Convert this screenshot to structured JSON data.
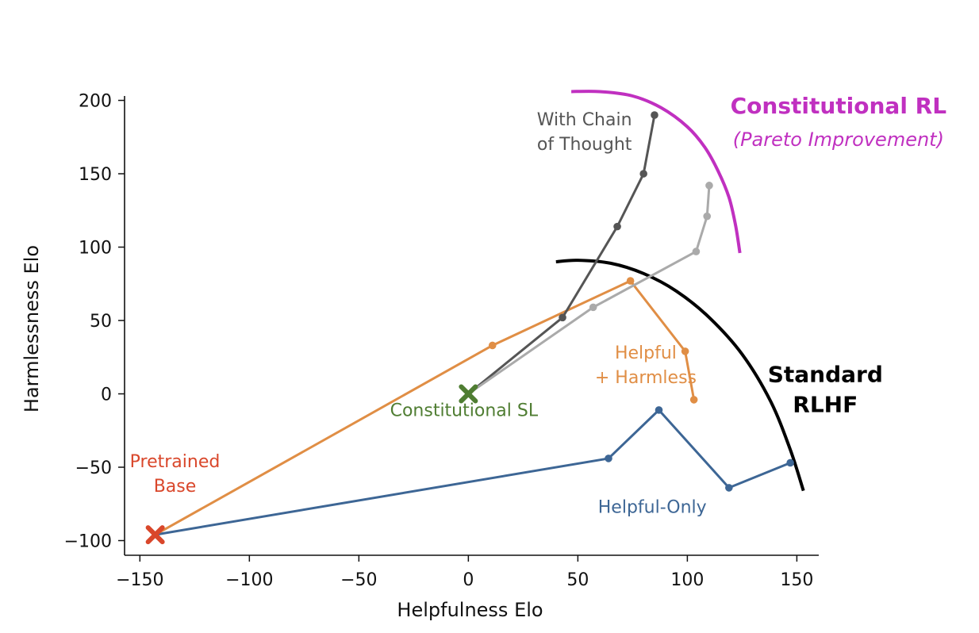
{
  "chart_data": {
    "type": "line",
    "xlabel": "Helpfulness Elo",
    "ylabel": "Harmlessness Elo",
    "xlim": [
      -157,
      160
    ],
    "ylim": [
      -110,
      203
    ],
    "xticks": [
      -150,
      -100,
      -50,
      0,
      50,
      100,
      150
    ],
    "yticks": [
      -100,
      -50,
      0,
      50,
      100,
      150,
      200
    ],
    "xtick_labels": [
      "−150",
      "−100",
      "−50",
      "0",
      "50",
      "100",
      "150"
    ],
    "ytick_labels": [
      "−100",
      "−50",
      "0",
      "50",
      "100",
      "150",
      "200"
    ],
    "grid": false,
    "series": [
      {
        "name": "Helpful-Only",
        "color": "#3d6695",
        "points": [
          [
            -143,
            -96
          ],
          [
            64,
            -44
          ],
          [
            87,
            -11
          ],
          [
            119,
            -64
          ],
          [
            147,
            -47
          ]
        ]
      },
      {
        "name": "Helpful + Harmless",
        "color": "#e08e45",
        "points": [
          [
            -143,
            -96
          ],
          [
            11,
            33
          ],
          [
            74,
            77
          ],
          [
            99,
            29
          ],
          [
            103,
            -4
          ]
        ]
      },
      {
        "name": "With Chain of Thought",
        "color": "#555555",
        "points": [
          [
            0,
            0
          ],
          [
            43,
            52
          ],
          [
            68,
            114
          ],
          [
            80,
            150
          ],
          [
            85,
            190
          ]
        ]
      },
      {
        "name": "",
        "color": "#aaaaaa",
        "points": [
          [
            0,
            0
          ],
          [
            57,
            59
          ],
          [
            104,
            97
          ],
          [
            109,
            121
          ],
          [
            110,
            142
          ]
        ]
      }
    ],
    "markers": [
      {
        "name": "Pretrained Base",
        "x": -143,
        "y": -96,
        "color": "#d9472b",
        "shape": "x"
      },
      {
        "name": "Constitutional SL",
        "x": 0,
        "y": 0,
        "color": "#4f7d32",
        "shape": "x"
      }
    ],
    "frontiers": [
      {
        "name": "Standard RLHF",
        "color": "#000000",
        "points": [
          [
            40,
            90
          ],
          [
            50,
            91
          ],
          [
            65,
            89
          ],
          [
            80,
            82
          ],
          [
            95,
            70
          ],
          [
            110,
            52
          ],
          [
            125,
            27
          ],
          [
            138,
            -5
          ],
          [
            147,
            -38
          ],
          [
            153,
            -66
          ]
        ]
      },
      {
        "name": "Constitutional RL (Pareto Improvement)",
        "color": "#c030c0",
        "points": [
          [
            47,
            206
          ],
          [
            60,
            206
          ],
          [
            75,
            203
          ],
          [
            88,
            195
          ],
          [
            100,
            182
          ],
          [
            108,
            168
          ],
          [
            114,
            152
          ],
          [
            119,
            134
          ],
          [
            122,
            115
          ],
          [
            124,
            96
          ]
        ]
      }
    ],
    "annotations": [
      {
        "id": "chain",
        "lines": [
          "With Chain",
          "of Thought"
        ],
        "color": "#555555",
        "style": "normal",
        "x": 53,
        "y": 183,
        "dy": 31
      },
      {
        "id": "helpful-harmless",
        "lines": [
          "Helpful",
          "+ Harmless"
        ],
        "color": "#e08e45",
        "style": "normal",
        "x": 81,
        "y": 24,
        "dy": 31
      },
      {
        "id": "helpful-only",
        "lines": [
          "Helpful-Only"
        ],
        "color": "#3d6695",
        "style": "normal",
        "x": 84,
        "y": -81,
        "dy": 31
      },
      {
        "id": "constitutional-sl",
        "lines": [
          "Constitutional SL"
        ],
        "color": "#4f7d32",
        "style": "normal",
        "x": -2,
        "y": -15,
        "dy": 31
      },
      {
        "id": "pretrained-base",
        "lines": [
          "Pretrained",
          "Base"
        ],
        "color": "#d9472b",
        "style": "normal",
        "x": -134,
        "y": -50,
        "dy": 31
      },
      {
        "id": "standard-rlhf",
        "lines": [
          "Standard",
          "RLHF"
        ],
        "color": "#000000",
        "style": "bold",
        "x": 163,
        "y": 8,
        "dy": 38
      },
      {
        "id": "constitutional-rl",
        "lines": [
          "Constitutional RL"
        ],
        "color": "#c030c0",
        "style": "bold",
        "x": 169,
        "y": 191,
        "dy": 38
      },
      {
        "id": "pareto",
        "lines": [
          "(Pareto Improvement)"
        ],
        "color": "#c030c0",
        "style": "italic",
        "x": 169,
        "y": 169,
        "dy": 30
      }
    ]
  }
}
